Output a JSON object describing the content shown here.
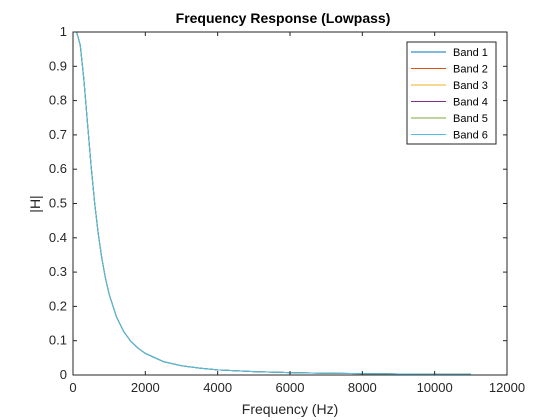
{
  "chart_data": {
    "type": "line",
    "title": "Frequency Response (Lowpass)",
    "xlabel": "Frequency (Hz)",
    "ylabel": "|H|",
    "xlim": [
      0,
      12000
    ],
    "ylim": [
      0,
      1
    ],
    "xticks": [
      0,
      2000,
      4000,
      6000,
      8000,
      10000,
      12000
    ],
    "xtick_labels": [
      "0",
      "2000",
      "4000",
      "6000",
      "8000",
      "10000",
      "12000"
    ],
    "yticks": [
      0,
      0.1,
      0.2,
      0.3,
      0.4,
      0.5,
      0.6,
      0.7,
      0.8,
      0.9,
      1
    ],
    "ytick_labels": [
      "0",
      "0.1",
      "0.2",
      "0.3",
      "0.4",
      "0.5",
      "0.6",
      "0.7",
      "0.8",
      "0.9",
      "1"
    ],
    "grid": false,
    "legend_position": "top-right",
    "x": [
      0,
      100,
      200,
      300,
      400,
      500,
      600,
      700,
      800,
      900,
      1000,
      1200,
      1400,
      1600,
      1800,
      2000,
      2500,
      3000,
      3500,
      4000,
      5000,
      6000,
      7000,
      8000,
      9000,
      10000,
      11000
    ],
    "series": [
      {
        "name": "Band 1",
        "color": "#0072BD",
        "values": [
          1,
          1,
          0.962,
          0.862,
          0.735,
          0.61,
          0.5,
          0.41,
          0.338,
          0.281,
          0.235,
          0.17,
          0.127,
          0.098,
          0.078,
          0.063,
          0.039,
          0.027,
          0.02,
          0.015,
          0.01,
          0.007,
          0.005,
          0.004,
          0.003,
          0.002,
          0.002
        ]
      },
      {
        "name": "Band 2",
        "color": "#D95319",
        "values": [
          1,
          1,
          0.962,
          0.862,
          0.735,
          0.61,
          0.5,
          0.41,
          0.338,
          0.281,
          0.235,
          0.17,
          0.127,
          0.098,
          0.078,
          0.063,
          0.039,
          0.027,
          0.02,
          0.015,
          0.01,
          0.007,
          0.005,
          0.004,
          0.003,
          0.002,
          0.002
        ]
      },
      {
        "name": "Band 3",
        "color": "#EDB120",
        "values": [
          1,
          1,
          0.962,
          0.862,
          0.735,
          0.61,
          0.5,
          0.41,
          0.338,
          0.281,
          0.235,
          0.17,
          0.127,
          0.098,
          0.078,
          0.063,
          0.039,
          0.027,
          0.02,
          0.015,
          0.01,
          0.007,
          0.005,
          0.004,
          0.003,
          0.002,
          0.002
        ]
      },
      {
        "name": "Band 4",
        "color": "#7E2F8E",
        "values": [
          1,
          1,
          0.962,
          0.862,
          0.735,
          0.61,
          0.5,
          0.41,
          0.338,
          0.281,
          0.235,
          0.17,
          0.127,
          0.098,
          0.078,
          0.063,
          0.039,
          0.027,
          0.02,
          0.015,
          0.01,
          0.007,
          0.005,
          0.004,
          0.003,
          0.002,
          0.002
        ]
      },
      {
        "name": "Band 5",
        "color": "#77AC30",
        "values": [
          1,
          1,
          0.962,
          0.862,
          0.735,
          0.61,
          0.5,
          0.41,
          0.338,
          0.281,
          0.235,
          0.17,
          0.127,
          0.098,
          0.078,
          0.063,
          0.039,
          0.027,
          0.02,
          0.015,
          0.01,
          0.007,
          0.005,
          0.004,
          0.003,
          0.002,
          0.002
        ]
      },
      {
        "name": "Band 6",
        "color": "#4DBEEE",
        "values": [
          1,
          1,
          0.962,
          0.862,
          0.735,
          0.61,
          0.5,
          0.41,
          0.338,
          0.281,
          0.235,
          0.17,
          0.127,
          0.098,
          0.078,
          0.063,
          0.039,
          0.027,
          0.02,
          0.015,
          0.01,
          0.007,
          0.005,
          0.004,
          0.003,
          0.002,
          0.002
        ]
      }
    ]
  }
}
